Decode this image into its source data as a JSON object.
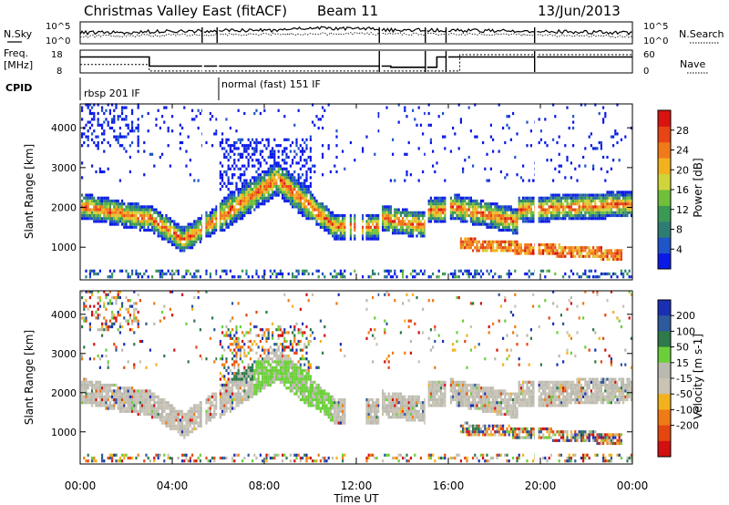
{
  "header": {
    "title": "Christmas Valley East (fitACF)",
    "beam": "Beam 11",
    "date": "13/Jun/2013"
  },
  "noise_panel": {
    "left_label": "N.Sky",
    "right_label": "N.Search",
    "left_ticks": [
      "10^5",
      "10^0"
    ],
    "right_ticks": [
      "10^5",
      "10^0"
    ]
  },
  "freq_panel": {
    "left_label_1": "Freq.",
    "left_label_2": "[MHz]",
    "right_label": "Nave",
    "left_ticks": [
      "18",
      "8"
    ],
    "right_ticks": [
      "60",
      "0"
    ],
    "step_freq": [
      [
        0,
        15
      ],
      [
        3,
        15
      ],
      [
        3,
        11
      ],
      [
        13.5,
        11
      ],
      [
        13.5,
        10.5
      ],
      [
        15.5,
        10.5
      ],
      [
        15.5,
        15
      ],
      [
        24,
        15
      ]
    ],
    "step_nave": [
      [
        0,
        22
      ],
      [
        3,
        22
      ],
      [
        3,
        5
      ],
      [
        13.5,
        5
      ],
      [
        13.5,
        5
      ],
      [
        16.5,
        5
      ],
      [
        16.5,
        48
      ],
      [
        24,
        48
      ]
    ]
  },
  "cpid": {
    "label": "CPID",
    "segments": [
      {
        "text": "rbsp 201 IF"
      },
      {
        "text": "normal (fast) 151 IF"
      }
    ]
  },
  "xaxis": {
    "title": "Time UT",
    "ticks": [
      "00:00",
      "04:00",
      "08:00",
      "12:00",
      "16:00",
      "20:00",
      "00:00"
    ]
  },
  "chart_data": [
    {
      "type": "heatmap",
      "title": "Power",
      "ylabel": "Slant Range [km]",
      "yticks": [
        "1000",
        "2000",
        "3000",
        "4000"
      ],
      "ylim": [
        180,
        4600
      ],
      "xlim": [
        0,
        24
      ],
      "colorbar_label": "Power [dB]",
      "colorbar_ticks": [
        "4",
        "8",
        "12",
        "16",
        "20",
        "24",
        "28"
      ],
      "colorbar_range": [
        0,
        32
      ],
      "colors": [
        "#0a1ae6",
        "#1f55c8",
        "#2e7d74",
        "#3a9a55",
        "#6fbf3a",
        "#cfd43a",
        "#f2b21e",
        "#f07a1a",
        "#e84415",
        "#d9140f"
      ]
    },
    {
      "type": "heatmap",
      "title": "Velocity",
      "ylabel": "Slant Range [km]",
      "yticks": [
        "1000",
        "2000",
        "3000",
        "4000"
      ],
      "ylim": [
        180,
        4600
      ],
      "xlim": [
        0,
        24
      ],
      "colorbar_label": "Velocity [m s-1]",
      "colorbar_ticks": [
        "200",
        "100",
        "50",
        "15",
        "-15",
        "-50",
        "-100",
        "-200"
      ],
      "colors": [
        "#1b2fb5",
        "#2d5a9c",
        "#2e7a4a",
        "#6ccf3a",
        "#b9b9b0",
        "#c9c3b4",
        "#f3b21c",
        "#f07a15",
        "#e4460f",
        "#d21010"
      ]
    }
  ]
}
